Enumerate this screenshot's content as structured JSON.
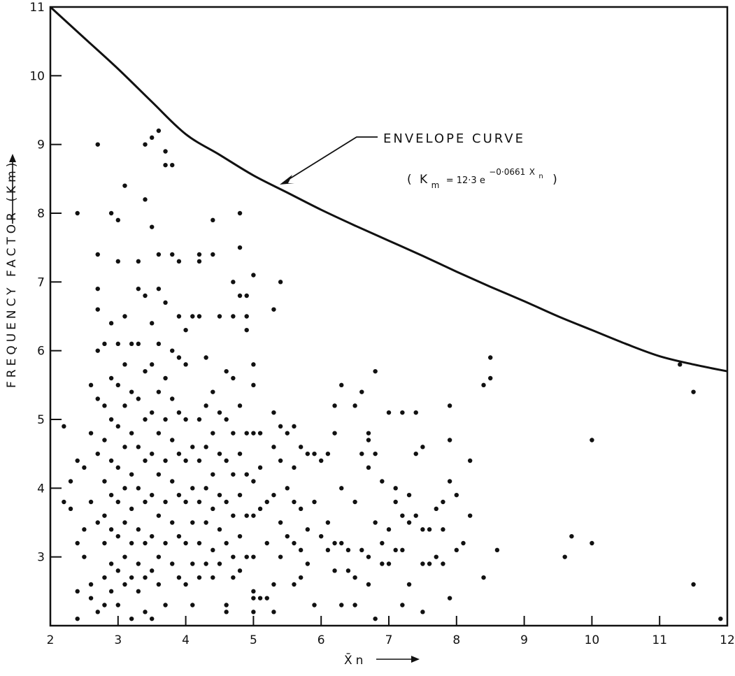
{
  "chart_data": {
    "type": "scatter",
    "title": "",
    "xlabel": "X̄n",
    "ylabel": "FREQUENCY   FACTOR   (Km)",
    "xlim": [
      2,
      12
    ],
    "ylim": [
      2,
      11
    ],
    "xticks": [
      2,
      3,
      4,
      5,
      6,
      7,
      8,
      9,
      10,
      11,
      12
    ],
    "yticks": [
      3,
      4,
      5,
      6,
      7,
      8,
      9,
      10,
      11
    ],
    "grid": false,
    "annotation": {
      "label": "ENVELOPE CURVE",
      "formula": "( Km = 12·3 e^(−0·0661 X̄n) )",
      "formula_parts": {
        "open": "(",
        "k": "K",
        "k_sub": "m",
        "eq_coef": "= 12·3 e",
        "exponent": "−0·0661",
        "x": "X",
        "x_sub": "n",
        "close": ")"
      },
      "points_to_x": 5.35
    },
    "envelope_curve": {
      "x": [
        2,
        2.5,
        3,
        3.5,
        4,
        4.5,
        5,
        5.5,
        6,
        6.5,
        7,
        7.5,
        8,
        8.5,
        9,
        9.5,
        10,
        10.5,
        11,
        11.5,
        12
      ],
      "y": [
        11.0,
        10.55,
        10.1,
        9.62,
        9.15,
        8.85,
        8.55,
        8.3,
        8.05,
        7.82,
        7.6,
        7.38,
        7.15,
        6.93,
        6.72,
        6.5,
        6.3,
        6.1,
        5.92,
        5.8,
        5.7
      ]
    },
    "points": [
      [
        2.2,
        4.9
      ],
      [
        2.2,
        3.8
      ],
      [
        2.3,
        4.1
      ],
      [
        2.3,
        3.7
      ],
      [
        2.4,
        8.0
      ],
      [
        2.4,
        4.4
      ],
      [
        2.4,
        3.2
      ],
      [
        2.4,
        2.5
      ],
      [
        2.4,
        2.1
      ],
      [
        2.5,
        4.3
      ],
      [
        2.5,
        3.4
      ],
      [
        2.5,
        3.0
      ],
      [
        2.6,
        5.5
      ],
      [
        2.6,
        4.8
      ],
      [
        2.6,
        3.8
      ],
      [
        2.6,
        2.6
      ],
      [
        2.6,
        2.4
      ],
      [
        2.7,
        9.0
      ],
      [
        2.7,
        7.4
      ],
      [
        2.7,
        6.9
      ],
      [
        2.7,
        6.6
      ],
      [
        2.7,
        6.0
      ],
      [
        2.7,
        5.3
      ],
      [
        2.7,
        4.5
      ],
      [
        2.7,
        3.5
      ],
      [
        2.7,
        2.2
      ],
      [
        2.8,
        6.1
      ],
      [
        2.8,
        5.2
      ],
      [
        2.8,
        4.7
      ],
      [
        2.8,
        4.1
      ],
      [
        2.8,
        3.6
      ],
      [
        2.8,
        3.2
      ],
      [
        2.8,
        2.7
      ],
      [
        2.8,
        2.3
      ],
      [
        2.9,
        8.0
      ],
      [
        2.9,
        6.4
      ],
      [
        2.9,
        5.6
      ],
      [
        2.9,
        5.0
      ],
      [
        2.9,
        4.4
      ],
      [
        2.9,
        3.9
      ],
      [
        2.9,
        3.4
      ],
      [
        2.9,
        2.9
      ],
      [
        2.9,
        2.5
      ],
      [
        3.0,
        7.9
      ],
      [
        3.0,
        7.3
      ],
      [
        3.0,
        6.1
      ],
      [
        3.0,
        5.5
      ],
      [
        3.0,
        4.9
      ],
      [
        3.0,
        4.3
      ],
      [
        3.0,
        3.8
      ],
      [
        3.0,
        3.3
      ],
      [
        3.0,
        2.8
      ],
      [
        3.0,
        2.3
      ],
      [
        3.1,
        8.4
      ],
      [
        3.1,
        6.5
      ],
      [
        3.1,
        5.8
      ],
      [
        3.1,
        5.2
      ],
      [
        3.1,
        4.6
      ],
      [
        3.1,
        4.0
      ],
      [
        3.1,
        3.5
      ],
      [
        3.1,
        3.0
      ],
      [
        3.1,
        2.6
      ],
      [
        3.2,
        6.1
      ],
      [
        3.2,
        5.4
      ],
      [
        3.2,
        4.8
      ],
      [
        3.2,
        4.2
      ],
      [
        3.2,
        3.7
      ],
      [
        3.2,
        3.2
      ],
      [
        3.2,
        2.7
      ],
      [
        3.2,
        2.1
      ],
      [
        3.3,
        7.3
      ],
      [
        3.3,
        6.9
      ],
      [
        3.3,
        6.1
      ],
      [
        3.3,
        5.3
      ],
      [
        3.3,
        4.6
      ],
      [
        3.3,
        4.0
      ],
      [
        3.3,
        3.4
      ],
      [
        3.3,
        2.9
      ],
      [
        3.3,
        2.5
      ],
      [
        3.4,
        9.0
      ],
      [
        3.4,
        8.2
      ],
      [
        3.4,
        6.8
      ],
      [
        3.4,
        5.7
      ],
      [
        3.4,
        5.0
      ],
      [
        3.4,
        4.4
      ],
      [
        3.4,
        3.8
      ],
      [
        3.4,
        3.2
      ],
      [
        3.4,
        2.7
      ],
      [
        3.4,
        2.2
      ],
      [
        3.5,
        9.1
      ],
      [
        3.5,
        7.8
      ],
      [
        3.5,
        6.4
      ],
      [
        3.5,
        5.8
      ],
      [
        3.5,
        5.1
      ],
      [
        3.5,
        4.5
      ],
      [
        3.5,
        3.9
      ],
      [
        3.5,
        3.3
      ],
      [
        3.5,
        2.8
      ],
      [
        3.5,
        2.1
      ],
      [
        3.6,
        9.2
      ],
      [
        3.6,
        7.4
      ],
      [
        3.6,
        6.9
      ],
      [
        3.6,
        6.1
      ],
      [
        3.6,
        5.4
      ],
      [
        3.6,
        4.8
      ],
      [
        3.6,
        4.2
      ],
      [
        3.6,
        3.6
      ],
      [
        3.6,
        3.0
      ],
      [
        3.6,
        2.6
      ],
      [
        3.7,
        8.9
      ],
      [
        3.7,
        8.7
      ],
      [
        3.7,
        6.7
      ],
      [
        3.7,
        5.6
      ],
      [
        3.7,
        5.0
      ],
      [
        3.7,
        4.4
      ],
      [
        3.7,
        3.8
      ],
      [
        3.7,
        3.2
      ],
      [
        3.7,
        2.3
      ],
      [
        3.8,
        8.7
      ],
      [
        3.8,
        7.4
      ],
      [
        3.8,
        6.0
      ],
      [
        3.8,
        5.3
      ],
      [
        3.8,
        4.7
      ],
      [
        3.8,
        4.1
      ],
      [
        3.8,
        3.5
      ],
      [
        3.8,
        2.9
      ],
      [
        3.9,
        7.3
      ],
      [
        3.9,
        6.5
      ],
      [
        3.9,
        5.9
      ],
      [
        3.9,
        5.1
      ],
      [
        3.9,
        4.5
      ],
      [
        3.9,
        3.9
      ],
      [
        3.9,
        3.3
      ],
      [
        3.9,
        2.7
      ],
      [
        4.0,
        6.3
      ],
      [
        4.0,
        5.8
      ],
      [
        4.0,
        5.0
      ],
      [
        4.0,
        4.4
      ],
      [
        4.0,
        3.8
      ],
      [
        4.0,
        3.2
      ],
      [
        4.0,
        2.6
      ],
      [
        4.1,
        6.5
      ],
      [
        4.1,
        4.6
      ],
      [
        4.1,
        4.0
      ],
      [
        4.1,
        3.5
      ],
      [
        4.1,
        2.9
      ],
      [
        4.1,
        2.3
      ],
      [
        4.2,
        7.4
      ],
      [
        4.2,
        7.3
      ],
      [
        4.2,
        6.5
      ],
      [
        4.2,
        5.0
      ],
      [
        4.2,
        4.4
      ],
      [
        4.2,
        3.8
      ],
      [
        4.2,
        3.2
      ],
      [
        4.2,
        2.7
      ],
      [
        4.3,
        5.9
      ],
      [
        4.3,
        5.2
      ],
      [
        4.3,
        4.6
      ],
      [
        4.3,
        4.0
      ],
      [
        4.3,
        3.5
      ],
      [
        4.3,
        2.9
      ],
      [
        4.4,
        7.9
      ],
      [
        4.4,
        7.4
      ],
      [
        4.4,
        5.4
      ],
      [
        4.4,
        4.8
      ],
      [
        4.4,
        4.2
      ],
      [
        4.4,
        3.7
      ],
      [
        4.4,
        3.1
      ],
      [
        4.4,
        2.7
      ],
      [
        4.5,
        6.5
      ],
      [
        4.5,
        5.1
      ],
      [
        4.5,
        4.5
      ],
      [
        4.5,
        3.9
      ],
      [
        4.5,
        3.4
      ],
      [
        4.5,
        2.9
      ],
      [
        4.6,
        5.7
      ],
      [
        4.6,
        5.0
      ],
      [
        4.6,
        4.4
      ],
      [
        4.6,
        3.8
      ],
      [
        4.6,
        3.2
      ],
      [
        4.6,
        2.3
      ],
      [
        4.6,
        2.2
      ],
      [
        4.7,
        7.0
      ],
      [
        4.7,
        6.5
      ],
      [
        4.7,
        5.6
      ],
      [
        4.7,
        4.8
      ],
      [
        4.7,
        4.2
      ],
      [
        4.7,
        3.6
      ],
      [
        4.7,
        3.0
      ],
      [
        4.7,
        2.7
      ],
      [
        4.8,
        8.0
      ],
      [
        4.8,
        7.5
      ],
      [
        4.8,
        6.8
      ],
      [
        4.8,
        5.2
      ],
      [
        4.8,
        4.5
      ],
      [
        4.8,
        3.9
      ],
      [
        4.8,
        3.3
      ],
      [
        4.8,
        2.8
      ],
      [
        4.9,
        6.8
      ],
      [
        4.9,
        6.5
      ],
      [
        4.9,
        6.3
      ],
      [
        4.9,
        4.8
      ],
      [
        4.9,
        4.2
      ],
      [
        4.9,
        3.6
      ],
      [
        4.9,
        3.0
      ],
      [
        5.0,
        7.1
      ],
      [
        5.0,
        5.8
      ],
      [
        5.0,
        5.5
      ],
      [
        5.0,
        4.8
      ],
      [
        5.0,
        4.1
      ],
      [
        5.0,
        3.6
      ],
      [
        5.0,
        3.0
      ],
      [
        5.0,
        2.5
      ],
      [
        5.0,
        2.4
      ],
      [
        5.0,
        2.2
      ],
      [
        5.1,
        4.8
      ],
      [
        5.1,
        4.3
      ],
      [
        5.1,
        3.7
      ],
      [
        5.1,
        2.4
      ],
      [
        5.2,
        3.8
      ],
      [
        5.2,
        3.2
      ],
      [
        5.2,
        2.4
      ],
      [
        5.3,
        6.6
      ],
      [
        5.3,
        5.1
      ],
      [
        5.3,
        4.6
      ],
      [
        5.3,
        3.9
      ],
      [
        5.3,
        2.6
      ],
      [
        5.3,
        2.2
      ],
      [
        5.4,
        7.0
      ],
      [
        5.4,
        4.9
      ],
      [
        5.4,
        4.4
      ],
      [
        5.4,
        3.5
      ],
      [
        5.4,
        3.0
      ],
      [
        5.5,
        4.8
      ],
      [
        5.5,
        4.0
      ],
      [
        5.5,
        3.3
      ],
      [
        5.6,
        4.9
      ],
      [
        5.6,
        4.3
      ],
      [
        5.6,
        3.8
      ],
      [
        5.6,
        3.2
      ],
      [
        5.6,
        2.6
      ],
      [
        5.7,
        4.6
      ],
      [
        5.7,
        3.7
      ],
      [
        5.7,
        3.1
      ],
      [
        5.7,
        2.7
      ],
      [
        5.8,
        4.5
      ],
      [
        5.8,
        3.4
      ],
      [
        5.8,
        2.9
      ],
      [
        5.9,
        4.5
      ],
      [
        5.9,
        3.8
      ],
      [
        5.9,
        2.3
      ],
      [
        6.0,
        4.4
      ],
      [
        6.0,
        3.3
      ],
      [
        6.1,
        4.5
      ],
      [
        6.1,
        3.5
      ],
      [
        6.1,
        3.1
      ],
      [
        6.2,
        5.2
      ],
      [
        6.2,
        4.8
      ],
      [
        6.2,
        3.2
      ],
      [
        6.2,
        2.8
      ],
      [
        6.3,
        5.5
      ],
      [
        6.3,
        4.0
      ],
      [
        6.3,
        3.2
      ],
      [
        6.3,
        2.3
      ],
      [
        6.4,
        3.1
      ],
      [
        6.4,
        2.8
      ],
      [
        6.5,
        5.2
      ],
      [
        6.5,
        3.8
      ],
      [
        6.5,
        2.7
      ],
      [
        6.5,
        2.3
      ],
      [
        6.6,
        5.4
      ],
      [
        6.6,
        4.5
      ],
      [
        6.6,
        3.1
      ],
      [
        6.7,
        4.8
      ],
      [
        6.7,
        4.7
      ],
      [
        6.7,
        4.3
      ],
      [
        6.7,
        3.0
      ],
      [
        6.7,
        2.6
      ],
      [
        6.8,
        5.7
      ],
      [
        6.8,
        4.5
      ],
      [
        6.8,
        3.5
      ],
      [
        6.8,
        2.1
      ],
      [
        6.9,
        4.1
      ],
      [
        6.9,
        3.2
      ],
      [
        6.9,
        2.9
      ],
      [
        7.0,
        5.1
      ],
      [
        7.0,
        3.4
      ],
      [
        7.0,
        2.9
      ],
      [
        7.1,
        4.0
      ],
      [
        7.1,
        3.8
      ],
      [
        7.1,
        3.1
      ],
      [
        7.2,
        5.1
      ],
      [
        7.2,
        3.6
      ],
      [
        7.2,
        3.1
      ],
      [
        7.2,
        2.3
      ],
      [
        7.3,
        3.9
      ],
      [
        7.3,
        3.5
      ],
      [
        7.3,
        2.6
      ],
      [
        7.4,
        5.1
      ],
      [
        7.4,
        4.5
      ],
      [
        7.4,
        3.6
      ],
      [
        7.5,
        4.6
      ],
      [
        7.5,
        3.4
      ],
      [
        7.5,
        2.9
      ],
      [
        7.5,
        2.2
      ],
      [
        7.6,
        3.4
      ],
      [
        7.6,
        2.9
      ],
      [
        7.7,
        3.7
      ],
      [
        7.7,
        3.0
      ],
      [
        7.8,
        3.8
      ],
      [
        7.8,
        3.4
      ],
      [
        7.8,
        2.9
      ],
      [
        7.9,
        5.2
      ],
      [
        7.9,
        4.7
      ],
      [
        7.9,
        4.1
      ],
      [
        7.9,
        2.4
      ],
      [
        8.0,
        3.9
      ],
      [
        8.0,
        3.1
      ],
      [
        8.1,
        3.2
      ],
      [
        8.2,
        4.4
      ],
      [
        8.2,
        3.6
      ],
      [
        8.4,
        5.5
      ],
      [
        8.4,
        2.7
      ],
      [
        8.5,
        5.9
      ],
      [
        8.5,
        5.6
      ],
      [
        8.6,
        3.1
      ],
      [
        9.6,
        3.0
      ],
      [
        9.7,
        3.3
      ],
      [
        10.0,
        4.7
      ],
      [
        10.0,
        3.2
      ],
      [
        11.3,
        5.8
      ],
      [
        11.5,
        5.4
      ],
      [
        11.5,
        2.6
      ],
      [
        11.9,
        2.1
      ]
    ]
  }
}
